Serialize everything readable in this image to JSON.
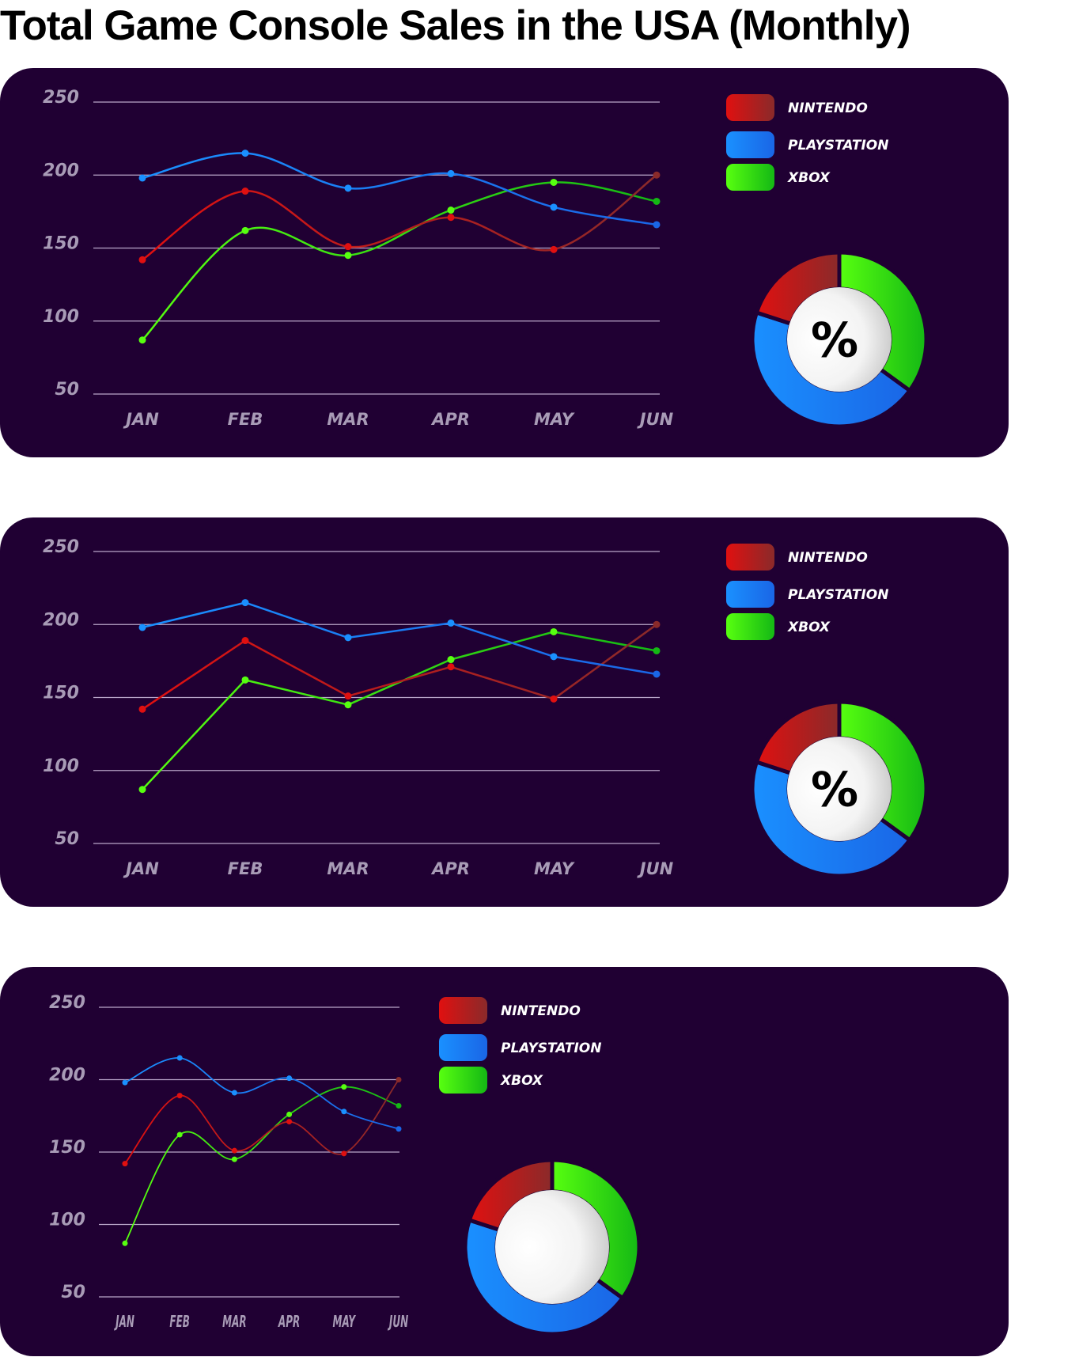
{
  "title": "Total Game Console Sales in the USA (Monthly)",
  "colors": {
    "panel_bg": "#200033",
    "grid": "#b9a6c9",
    "tick_text": "#a89bb6",
    "legend_text": "#ffffff",
    "nintendo": [
      "#e01010",
      "#8a2a2a"
    ],
    "playstation": [
      "#1a90ff",
      "#1a66e6"
    ],
    "xbox": [
      "#57ff10",
      "#14b814"
    ]
  },
  "chart_data": [
    {
      "type": "line",
      "curve": "smooth",
      "title": "",
      "categories": [
        "JAN",
        "FEB",
        "MAR",
        "APR",
        "MAY",
        "JUN"
      ],
      "y_ticks": [
        "250",
        "200",
        "150",
        "100",
        "50"
      ],
      "ylim": [
        50,
        250
      ],
      "grid": true,
      "legend_placement": "top-right",
      "series": [
        {
          "name": "NINTENDO",
          "values": [
            142,
            189,
            151,
            171,
            149,
            200
          ]
        },
        {
          "name": "PLAYSTATION",
          "values": [
            198,
            215,
            191,
            201,
            178,
            166
          ]
        },
        {
          "name": "XBOX",
          "values": [
            87,
            162,
            145,
            176,
            195,
            182
          ]
        }
      ],
      "donut": {
        "center_label": "%",
        "slices": [
          {
            "name": "NINTENDO",
            "value": 20
          },
          {
            "name": "PLAYSTATION",
            "value": 45
          },
          {
            "name": "XBOX",
            "value": 35
          }
        ]
      }
    },
    {
      "type": "line",
      "curve": "straight",
      "title": "",
      "categories": [
        "JAN",
        "FEB",
        "MAR",
        "APR",
        "MAY",
        "JUN"
      ],
      "y_ticks": [
        "250",
        "200",
        "150",
        "100",
        "50"
      ],
      "ylim": [
        50,
        250
      ],
      "grid": true,
      "legend_placement": "top-right",
      "series": [
        {
          "name": "NINTENDO",
          "values": [
            142,
            189,
            151,
            171,
            149,
            200
          ]
        },
        {
          "name": "PLAYSTATION",
          "values": [
            198,
            215,
            191,
            201,
            178,
            166
          ]
        },
        {
          "name": "XBOX",
          "values": [
            87,
            162,
            145,
            176,
            195,
            182
          ]
        }
      ],
      "donut": {
        "center_label": "%",
        "slices": [
          {
            "name": "NINTENDO",
            "value": 20
          },
          {
            "name": "PLAYSTATION",
            "value": 45
          },
          {
            "name": "XBOX",
            "value": 35
          }
        ]
      }
    },
    {
      "type": "line",
      "curve": "smooth",
      "title": "",
      "categories": [
        "JAN",
        "FEB",
        "MAR",
        "APR",
        "MAY",
        "JUN"
      ],
      "y_ticks": [
        "250",
        "200",
        "150",
        "100",
        "50"
      ],
      "ylim": [
        50,
        250
      ],
      "grid": true,
      "legend_placement": "top-center",
      "series": [
        {
          "name": "NINTENDO",
          "values": [
            142,
            189,
            151,
            171,
            149,
            200
          ]
        },
        {
          "name": "PLAYSTATION",
          "values": [
            198,
            215,
            191,
            201,
            178,
            166
          ]
        },
        {
          "name": "XBOX",
          "values": [
            87,
            162,
            145,
            176,
            195,
            182
          ]
        }
      ],
      "donut": {
        "center_label": "",
        "slices": [
          {
            "name": "NINTENDO",
            "value": 20
          },
          {
            "name": "PLAYSTATION",
            "value": 45
          },
          {
            "name": "XBOX",
            "value": 35
          }
        ]
      }
    }
  ]
}
